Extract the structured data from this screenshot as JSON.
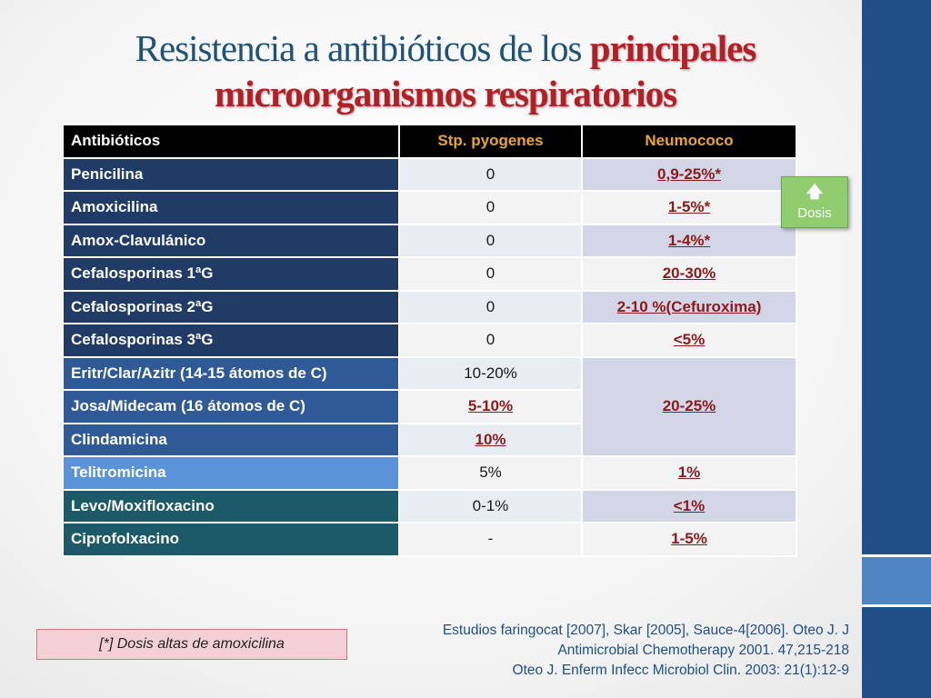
{
  "title": {
    "part1": "Resistencia a antibióticos de los ",
    "part2": "principales",
    "line2": "microorganismos respiratorios"
  },
  "table": {
    "headers": [
      "Antibióticos",
      "Stp. pyogenes",
      "Neumococo"
    ],
    "rows": [
      {
        "name": "Penicilina",
        "pyogenes": "0",
        "neumococo": "0,9-25%*"
      },
      {
        "name": "Amoxicilina",
        "pyogenes": "0",
        "neumococo": "1-5%*"
      },
      {
        "name": "Amox-Clavulánico",
        "pyogenes": "0",
        "neumococo": "1-4%*"
      },
      {
        "name": "Cefalosporinas 1ªG",
        "pyogenes": "0",
        "neumococo": "20-30%"
      },
      {
        "name": "Cefalosporinas 2ªG",
        "pyogenes": "0",
        "neumococo": "2-10 %(Cefuroxima)"
      },
      {
        "name": "Cefalosporinas 3ªG",
        "pyogenes": "0",
        "neumococo": "<5%"
      },
      {
        "name": "Eritr/Clar/Azitr (14-15 átomos de C)",
        "pyogenes": "10-20%",
        "neumococo": "20-25%"
      },
      {
        "name": "Josa/Midecam  (16 átomos de C)",
        "pyogenes": "5-10%"
      },
      {
        "name": "Clindamicina",
        "pyogenes": "10%"
      },
      {
        "name": "Telitromicina",
        "pyogenes": "5%",
        "neumococo": "1%"
      },
      {
        "name": "Levo/Moxifloxacino",
        "pyogenes": "0-1%",
        "neumococo": "<1%"
      },
      {
        "name": "Ciprofolxacino",
        "pyogenes": "-",
        "neumococo": "1-5%"
      }
    ]
  },
  "dosis_button": {
    "icon": "arrow-up-icon",
    "label": "Dosis"
  },
  "note": "[*]  Dosis altas de amoxicilina",
  "references": [
    "Estudios faringocat  [2007], Skar [2005],  Sauce-4[2006]. Oteo J.  J",
    "Antimicrobial Chemotherapy 2001. 47,215-218",
    "Oteo J. Enferm Infecc Microbiol Clin. 2003: 21(1):12-9"
  ],
  "colors": {
    "title": "#1f5278",
    "title_emphasis": "#b31f24",
    "header_gold": "#e8a72a",
    "side_band": "#1f4f86",
    "neumococo_values": "#8b1a1a"
  }
}
